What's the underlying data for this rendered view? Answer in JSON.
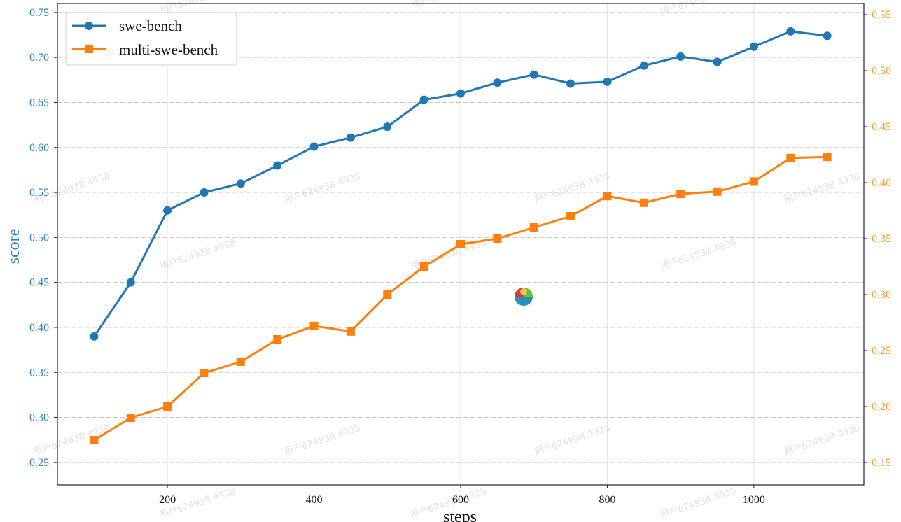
{
  "chart_data": {
    "type": "line",
    "xlabel": "steps",
    "ylabel": "score",
    "xlim": [
      50,
      1150
    ],
    "x_ticks": [
      200,
      400,
      600,
      800,
      1000
    ],
    "grid": true,
    "legend_position": "top-left",
    "y_left": {
      "lim": [
        0.225,
        0.76
      ],
      "ticks": [
        "0.25",
        "0.30",
        "0.35",
        "0.40",
        "0.45",
        "0.50",
        "0.55",
        "0.60",
        "0.65",
        "0.70",
        "0.75"
      ]
    },
    "y_right": {
      "lim": [
        0.13,
        0.56
      ],
      "ticks": [
        "0.15",
        "0.20",
        "0.25",
        "0.30",
        "0.35",
        "0.40",
        "0.45",
        "0.50",
        "0.55"
      ]
    },
    "series": [
      {
        "name": "swe-bench",
        "axis": "left",
        "color": "#1f77b4",
        "marker": "circle",
        "x": [
          100,
          150,
          200,
          250,
          300,
          350,
          400,
          450,
          500,
          550,
          600,
          650,
          700,
          750,
          800,
          850,
          900,
          950,
          1000,
          1050,
          1100
        ],
        "y": [
          0.39,
          0.45,
          0.53,
          0.55,
          0.56,
          0.58,
          0.601,
          0.611,
          0.623,
          0.653,
          0.66,
          0.672,
          0.681,
          0.671,
          0.673,
          0.691,
          0.701,
          0.695,
          0.712,
          0.729,
          0.724
        ]
      },
      {
        "name": "multi-swe-bench",
        "axis": "right",
        "color": "#ff7f0e",
        "marker": "square",
        "x": [
          100,
          150,
          200,
          250,
          300,
          350,
          400,
          450,
          500,
          550,
          600,
          650,
          700,
          750,
          800,
          850,
          900,
          950,
          1000,
          1050,
          1100
        ],
        "y": [
          0.17,
          0.19,
          0.2,
          0.23,
          0.24,
          0.26,
          0.272,
          0.267,
          0.3,
          0.325,
          0.345,
          0.35,
          0.36,
          0.37,
          0.388,
          0.382,
          0.39,
          0.392,
          0.401,
          0.422,
          0.423
        ]
      }
    ]
  },
  "watermark_text": "用户624938 4938",
  "colors": {
    "left_axis": "#2e86c1",
    "right_axis": "#ff9a2e",
    "grid": "#c8c8c8"
  }
}
